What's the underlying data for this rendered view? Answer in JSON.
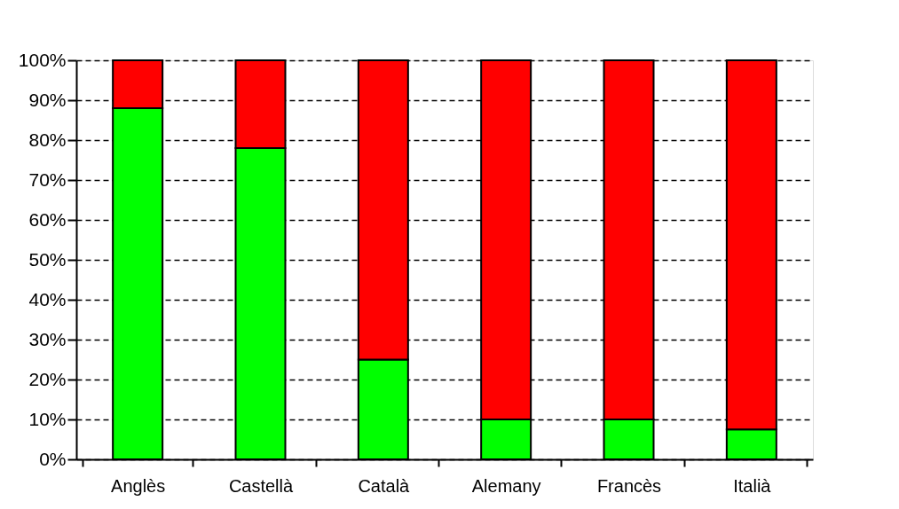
{
  "chart_data": {
    "type": "bar",
    "stacked": true,
    "categories": [
      "Anglès",
      "Castellà",
      "Català",
      "Alemany",
      "Francès",
      "Italià"
    ],
    "series": [
      {
        "color": "#00ff00",
        "values": [
          88,
          78,
          25,
          10,
          10,
          7.5
        ]
      },
      {
        "color": "#ff0000",
        "values": [
          12,
          22,
          75,
          90,
          90,
          92.5
        ]
      }
    ],
    "ylim": [
      0,
      100
    ],
    "yticks": [
      {
        "value": 0,
        "label": "0%"
      },
      {
        "value": 10,
        "label": "10%"
      },
      {
        "value": 20,
        "label": "20%"
      },
      {
        "value": 30,
        "label": "30%"
      },
      {
        "value": 40,
        "label": "40%"
      },
      {
        "value": 50,
        "label": "50%"
      },
      {
        "value": 60,
        "label": "60%"
      },
      {
        "value": 70,
        "label": "70%"
      },
      {
        "value": 80,
        "label": "80%"
      },
      {
        "value": 90,
        "label": "90%"
      },
      {
        "value": 100,
        "label": "100%"
      }
    ],
    "grid": "y",
    "line_style": "dashed",
    "legend": false
  }
}
